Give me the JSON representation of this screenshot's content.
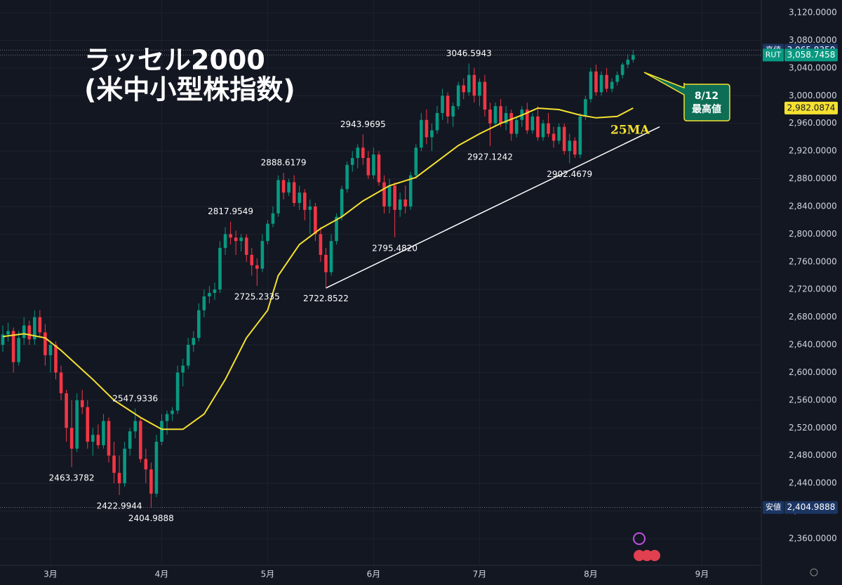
{
  "chart_data": {
    "type": "candlestick",
    "title": [
      "ラッセル2000",
      "(米中小型株指数)"
    ],
    "up_color": "#089981",
    "down_color": "#f23645",
    "xlim": [
      -0.53,
      143.2
    ],
    "xticks": [
      {
        "value": 9,
        "label": "3月"
      },
      {
        "value": 30,
        "label": "4月"
      },
      {
        "value": 50,
        "label": "5月"
      },
      {
        "value": 70,
        "label": "6月"
      },
      {
        "value": 90,
        "label": "7月"
      },
      {
        "value": 111,
        "label": "8月"
      },
      {
        "value": 132,
        "label": "9月"
      }
    ],
    "ylim": [
      2321.4,
      3138.3
    ],
    "yticks": [
      {
        "value": 2360,
        "label": "2,360.0000"
      },
      {
        "value": 2400,
        "label": "2,400.0000"
      },
      {
        "value": 2440,
        "label": "2,440.0000"
      },
      {
        "value": 2480,
        "label": "2,480.0000"
      },
      {
        "value": 2520,
        "label": "2,520.0000"
      },
      {
        "value": 2560,
        "label": "2,560.0000"
      },
      {
        "value": 2600,
        "label": "2,600.0000"
      },
      {
        "value": 2640,
        "label": "2,640.0000"
      },
      {
        "value": 2680,
        "label": "2,680.0000"
      },
      {
        "value": 2720,
        "label": "2,720.0000"
      },
      {
        "value": 2760,
        "label": "2,760.0000"
      },
      {
        "value": 2800,
        "label": "2,800.0000"
      },
      {
        "value": 2840,
        "label": "2,840.0000"
      },
      {
        "value": 2880,
        "label": "2,880.0000"
      },
      {
        "value": 2920,
        "label": "2,920.0000"
      },
      {
        "value": 2960,
        "label": "2,960.0000"
      },
      {
        "value": 3000,
        "label": "3,000.0000"
      },
      {
        "value": 3040,
        "label": "3,040.0000"
      },
      {
        "value": 3080,
        "label": "3,080.0000"
      },
      {
        "value": 3120,
        "label": "3,120.0000"
      }
    ],
    "candles": [
      [
        2640,
        2668,
        2630,
        2655
      ],
      [
        2655,
        2672,
        2645,
        2660
      ],
      [
        2660,
        2665,
        2600,
        2615
      ],
      [
        2615,
        2660,
        2610,
        2650
      ],
      [
        2650,
        2680,
        2640,
        2668
      ],
      [
        2668,
        2675,
        2640,
        2648
      ],
      [
        2648,
        2690,
        2640,
        2680
      ],
      [
        2680,
        2690,
        2650,
        2658
      ],
      [
        2658,
        2670,
        2610,
        2625
      ],
      [
        2625,
        2645,
        2600,
        2640
      ],
      [
        2640,
        2645,
        2590,
        2600
      ],
      [
        2600,
        2610,
        2560,
        2570
      ],
      [
        2570,
        2575,
        2500,
        2520
      ],
      [
        2520,
        2560,
        2463.3782,
        2490
      ],
      [
        2490,
        2570,
        2485,
        2560
      ],
      [
        2560,
        2575,
        2540,
        2550
      ],
      [
        2550,
        2560,
        2490,
        2500
      ],
      [
        2500,
        2520,
        2480,
        2510
      ],
      [
        2510,
        2525,
        2490,
        2495
      ],
      [
        2495,
        2540,
        2490,
        2530
      ],
      [
        2530,
        2535,
        2470,
        2480
      ],
      [
        2480,
        2500,
        2440,
        2455
      ],
      [
        2455,
        2480,
        2422.9944,
        2440
      ],
      [
        2440,
        2500,
        2435,
        2490
      ],
      [
        2490,
        2520,
        2480,
        2515
      ],
      [
        2515,
        2547.9336,
        2505,
        2530
      ],
      [
        2530,
        2535,
        2470,
        2475
      ],
      [
        2475,
        2490,
        2440,
        2460
      ],
      [
        2460,
        2470,
        2404.9888,
        2425
      ],
      [
        2425,
        2510,
        2420,
        2500
      ],
      [
        2500,
        2540,
        2495,
        2530
      ],
      [
        2530,
        2545,
        2510,
        2540
      ],
      [
        2540,
        2550,
        2530,
        2545
      ],
      [
        2545,
        2610,
        2540,
        2600
      ],
      [
        2600,
        2620,
        2580,
        2610
      ],
      [
        2610,
        2650,
        2605,
        2640
      ],
      [
        2640,
        2660,
        2630,
        2650
      ],
      [
        2650,
        2700,
        2645,
        2690
      ],
      [
        2690,
        2720,
        2680,
        2710
      ],
      [
        2710,
        2725,
        2700,
        2715
      ],
      [
        2715,
        2730,
        2705,
        2720
      ],
      [
        2720,
        2790,
        2715,
        2780
      ],
      [
        2780,
        2810,
        2770,
        2800
      ],
      [
        2800,
        2817.9549,
        2785,
        2795
      ],
      [
        2795,
        2805,
        2770,
        2790
      ],
      [
        2790,
        2800,
        2775,
        2795
      ],
      [
        2795,
        2800,
        2760,
        2770
      ],
      [
        2770,
        2780,
        2740,
        2755
      ],
      [
        2755,
        2765,
        2725.2335,
        2750
      ],
      [
        2750,
        2800,
        2745,
        2790
      ],
      [
        2790,
        2820,
        2785,
        2815
      ],
      [
        2815,
        2840,
        2810,
        2830
      ],
      [
        2830,
        2885,
        2825,
        2878
      ],
      [
        2878,
        2888.6179,
        2850,
        2860
      ],
      [
        2860,
        2880,
        2855,
        2875
      ],
      [
        2875,
        2885,
        2840,
        2845
      ],
      [
        2845,
        2870,
        2835,
        2860
      ],
      [
        2860,
        2865,
        2820,
        2835
      ],
      [
        2835,
        2850,
        2800,
        2840
      ],
      [
        2840,
        2845,
        2790,
        2800
      ],
      [
        2800,
        2810,
        2760,
        2770
      ],
      [
        2770,
        2780,
        2722.8522,
        2745
      ],
      [
        2745,
        2800,
        2740,
        2790
      ],
      [
        2790,
        2830,
        2785,
        2825
      ],
      [
        2825,
        2870,
        2820,
        2865
      ],
      [
        2865,
        2905,
        2860,
        2900
      ],
      [
        2900,
        2920,
        2890,
        2910
      ],
      [
        2910,
        2930,
        2895,
        2925
      ],
      [
        2925,
        2943.9695,
        2900,
        2910
      ],
      [
        2910,
        2920,
        2880,
        2885
      ],
      [
        2885,
        2925,
        2880,
        2915
      ],
      [
        2915,
        2920,
        2870,
        2875
      ],
      [
        2875,
        2885,
        2830,
        2840
      ],
      [
        2840,
        2880,
        2830,
        2870
      ],
      [
        2870,
        2875,
        2795.482,
        2835
      ],
      [
        2835,
        2860,
        2825,
        2850
      ],
      [
        2850,
        2870,
        2830,
        2840
      ],
      [
        2840,
        2890,
        2835,
        2885
      ],
      [
        2885,
        2930,
        2880,
        2925
      ],
      [
        2925,
        2975,
        2920,
        2965
      ],
      [
        2965,
        2980,
        2930,
        2940
      ],
      [
        2940,
        2960,
        2920,
        2950
      ],
      [
        2950,
        2985,
        2945,
        2975
      ],
      [
        2975,
        3010,
        2965,
        3000
      ],
      [
        3000,
        3005,
        2960,
        2970
      ],
      [
        2970,
        2990,
        2955,
        2985
      ],
      [
        2985,
        3020,
        2980,
        3015
      ],
      [
        3015,
        3025,
        2995,
        3005
      ],
      [
        3005,
        3046.5943,
        3000,
        3030
      ],
      [
        3030,
        3040,
        2990,
        3000
      ],
      [
        3000,
        3025,
        2985,
        3020
      ],
      [
        3020,
        3030,
        2970,
        2980
      ],
      [
        2980,
        2990,
        2927.1242,
        2960
      ],
      [
        2960,
        2990,
        2955,
        2985
      ],
      [
        2985,
        2995,
        2955,
        2960
      ],
      [
        2960,
        2985,
        2950,
        2975
      ],
      [
        2975,
        2980,
        2935,
        2945
      ],
      [
        2945,
        2970,
        2940,
        2965
      ],
      [
        2965,
        2985,
        2955,
        2980
      ],
      [
        2980,
        2990,
        2945,
        2950
      ],
      [
        2950,
        2975,
        2945,
        2970
      ],
      [
        2970,
        2985,
        2935,
        2940
      ],
      [
        2940,
        2965,
        2935,
        2960
      ],
      [
        2960,
        2975,
        2940,
        2945
      ],
      [
        2945,
        2955,
        2925,
        2935
      ],
      [
        2935,
        2960,
        2930,
        2955
      ],
      [
        2955,
        2960,
        2915,
        2920
      ],
      [
        2920,
        2945,
        2902.4679,
        2935
      ],
      [
        2935,
        2940,
        2910,
        2915
      ],
      [
        2915,
        2975,
        2910,
        2970
      ],
      [
        2970,
        3000,
        2965,
        2995
      ],
      [
        2995,
        3040,
        2990,
        3035
      ],
      [
        3035,
        3045,
        3000,
        3005
      ],
      [
        3005,
        3035,
        3000,
        3030
      ],
      [
        3030,
        3040,
        3005,
        3010
      ],
      [
        3010,
        3025,
        3005,
        3020
      ],
      [
        3020,
        3035,
        3015,
        3030
      ],
      [
        3030,
        3048,
        3025,
        3045
      ],
      [
        3045,
        3060,
        3040,
        3052
      ],
      [
        3052,
        3065.835,
        3048,
        3058.7458
      ]
    ],
    "moving_average": {
      "name": "25MA",
      "color": "#f5e130",
      "x": [
        0,
        4,
        8,
        11,
        17,
        21,
        26,
        30,
        34,
        38,
        42,
        46,
        50,
        52,
        56,
        60,
        64,
        68,
        73,
        78,
        82,
        86,
        90,
        94,
        98,
        101,
        105,
        109,
        112,
        116,
        119
      ],
      "values": [
        2652,
        2656,
        2650,
        2632,
        2590,
        2560,
        2535,
        2518,
        2518,
        2540,
        2590,
        2650,
        2690,
        2740,
        2785,
        2808,
        2825,
        2848,
        2870,
        2882,
        2905,
        2928,
        2945,
        2960,
        2972,
        2982,
        2980,
        2972,
        2968,
        2970,
        2982.0874
      ]
    },
    "trendline": {
      "color": "#ffffff",
      "x": [
        61,
        124
      ],
      "values": [
        2722,
        2955
      ]
    },
    "annotations": [
      {
        "x": 13,
        "value": 2463.3782,
        "label": "2463.3782",
        "position": "below"
      },
      {
        "x": 22,
        "value": 2422.9944,
        "label": "2422.9944",
        "position": "below"
      },
      {
        "x": 28,
        "value": 2404.9888,
        "label": "2404.9888",
        "position": "below"
      },
      {
        "x": 25,
        "value": 2547.9336,
        "label": "2547.9336",
        "position": "above"
      },
      {
        "x": 43,
        "value": 2817.9549,
        "label": "2817.9549",
        "position": "above"
      },
      {
        "x": 48,
        "value": 2725.2335,
        "label": "2725.2335",
        "position": "below"
      },
      {
        "x": 53,
        "value": 2888.6179,
        "label": "2888.6179",
        "position": "above"
      },
      {
        "x": 61,
        "value": 2722.8522,
        "label": "2722.8522",
        "position": "below"
      },
      {
        "x": 68,
        "value": 2943.9695,
        "label": "2943.9695",
        "position": "above"
      },
      {
        "x": 74,
        "value": 2795.482,
        "label": "2795.4820",
        "position": "below"
      },
      {
        "x": 88,
        "value": 3046.5943,
        "label": "3046.5943",
        "position": "above"
      },
      {
        "x": 92,
        "value": 2927.1242,
        "label": "2927.1242",
        "position": "below"
      },
      {
        "x": 107,
        "value": 2902.4679,
        "label": "2902.4679",
        "position": "below"
      }
    ],
    "callout": [
      "8/12",
      "最高値"
    ],
    "price_labels": [
      {
        "tag": "高値",
        "value": 3065.835,
        "label": "3,065.8350",
        "color": "#1c3664"
      },
      {
        "tag": "RUT",
        "value": 3058.7458,
        "label": "3,058.7458",
        "color": "#089981"
      },
      {
        "value": 2982.0874,
        "label": "2,982.0874",
        "color": "#f5e130"
      },
      {
        "tag": "安値",
        "value": 2404.9888,
        "label": "2,404.9888",
        "color": "#1c3664"
      }
    ]
  }
}
